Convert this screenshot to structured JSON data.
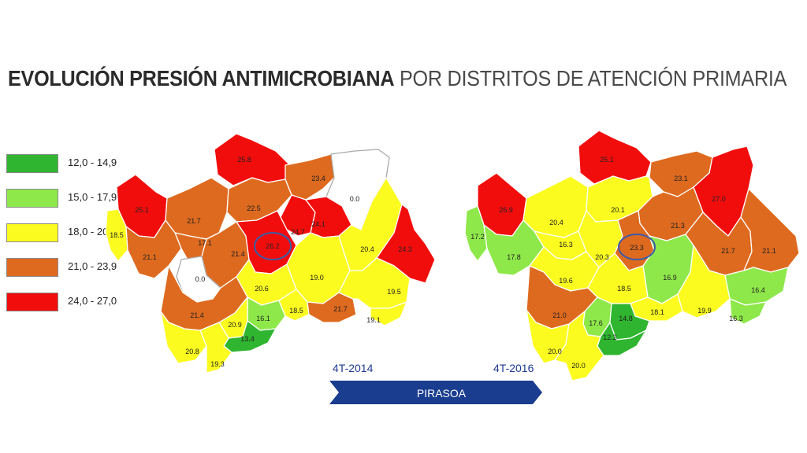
{
  "title": {
    "bold": "EVOLUCIÓN PRESIÓN ANTIMICROBIANA",
    "light": "POR DISTRITOS DE ATENCIÓN PRIMARIA"
  },
  "legend": [
    {
      "label": "12,0 - 14,9",
      "color": "#2fb52f"
    },
    {
      "label": "15,0 - 17,9",
      "color": "#8ee84a"
    },
    {
      "label": "18,0 - 20,9",
      "color": "#fbfb1f"
    },
    {
      "label": "21,0 - 23,9",
      "color": "#de6a1f"
    },
    {
      "label": "24,0 - 27,0",
      "color": "#f20d0d"
    }
  ],
  "maps": [
    {
      "period": "4T-2014",
      "highlight": "26.2",
      "districts": [
        "25.8",
        "23.4",
        "0.0",
        "25.1",
        "21.7",
        "22.5",
        "24.7",
        "24.1",
        "18.5",
        "17.1",
        "21.1",
        "21.4",
        "26.2",
        "20.4",
        "24.3",
        "0.0",
        "19.0",
        "20.6",
        "16.1",
        "18.5",
        "21.7",
        "19.5",
        "21.4",
        "20.9",
        "13.4",
        "19.1",
        "20.8",
        "19.3"
      ]
    },
    {
      "period": "4T-2016",
      "highlight": "23.3",
      "districts": [
        "25.1",
        "23.1",
        "27.0",
        "26.9",
        "20.4",
        "20.1",
        "17.2",
        "17.8",
        "16.3",
        "21.3",
        "20.3",
        "23.3",
        "19.6",
        "16.9",
        "21.7",
        "21.1",
        "18.5",
        "16.4",
        "21.0",
        "19.9",
        "18.1",
        "17.6",
        "14.8",
        "16.3",
        "12.2",
        "20.0",
        "20.0"
      ]
    }
  ],
  "program": "PIRASOA",
  "colors": {
    "arrow": "#1a3d8f",
    "circle": "#3b5ba8",
    "text_blue": "#1f3a93"
  }
}
